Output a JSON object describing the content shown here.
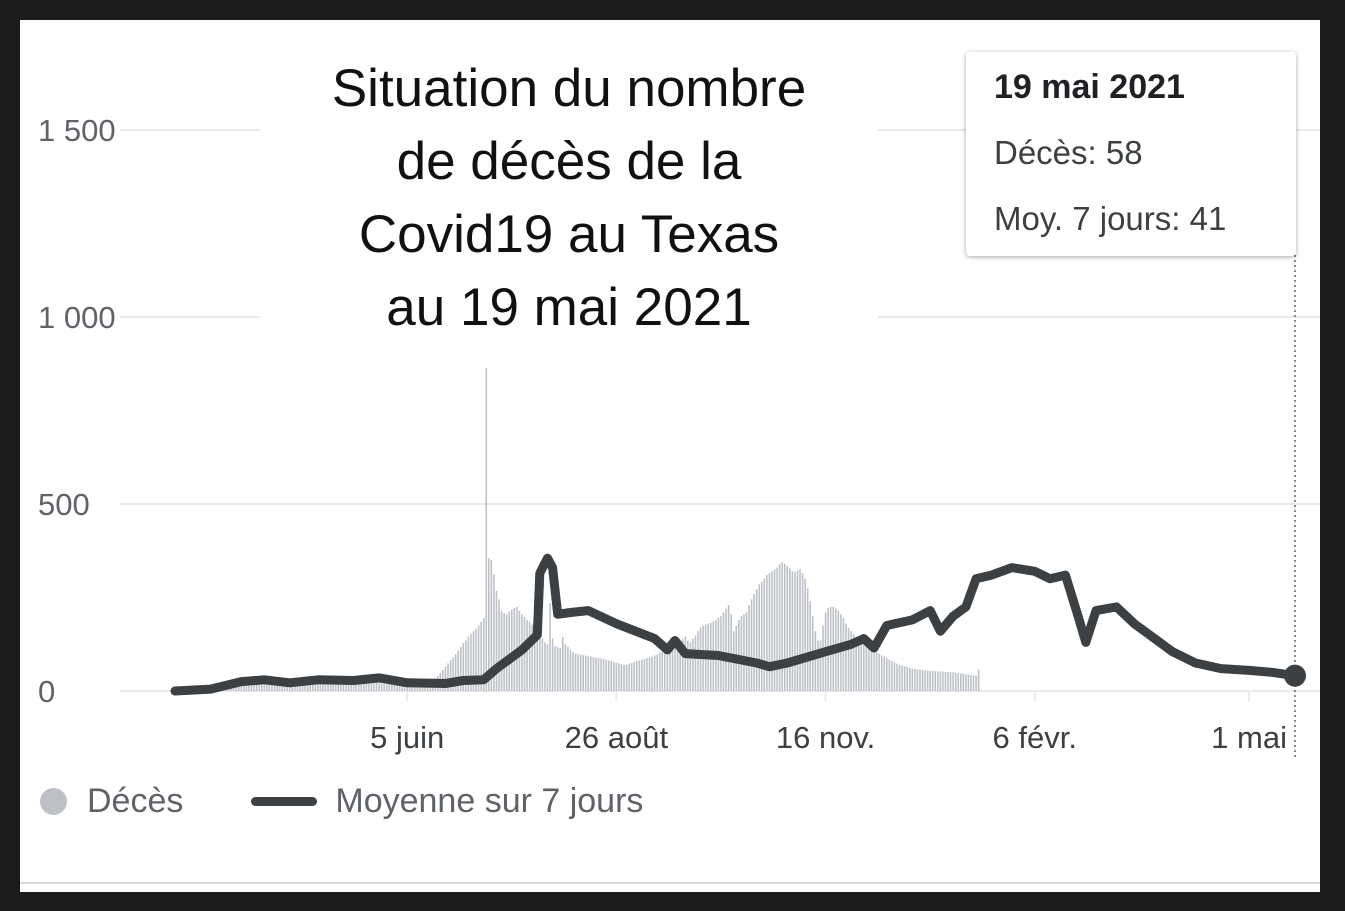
{
  "title": "Situation du nombre\nde décès de la\nCovid19 au Texas\nau 19 mai 2021",
  "tooltip": {
    "date": "19 mai 2021",
    "deaths": "Décès: 58",
    "avg": "Moy. 7 jours: 41"
  },
  "legend": {
    "deaths": "Décès",
    "avg": "Moyenne sur 7 jours"
  },
  "colors": {
    "bars": "#bdc1c6",
    "line": "#3c4043",
    "grid": "#e8eaed"
  },
  "chart_data": {
    "type": "bar",
    "title": "",
    "x_range": [
      "2020-03-06",
      "2021-05-19"
    ],
    "ylim": [
      0,
      1500
    ],
    "y_ticks": [
      0,
      500,
      1000,
      1500
    ],
    "y_tick_labels": [
      "0",
      "500",
      "1 000",
      "1 500"
    ],
    "x_ticks": [
      {
        "date": "2020-06-05",
        "label": "5 juin"
      },
      {
        "date": "2020-08-26",
        "label": "26 août"
      },
      {
        "date": "2020-11-16",
        "label": "16 nov."
      },
      {
        "date": "2021-02-06",
        "label": "6 févr."
      },
      {
        "date": "2021-05-01",
        "label": "1 mai"
      }
    ],
    "grid": true,
    "legend_position": "bottom-left",
    "series": [
      {
        "name": "Décès",
        "type": "bar",
        "daily_values_from": "2020-03-06",
        "values": [
          0,
          0,
          0,
          0,
          0,
          0,
          0,
          0,
          0,
          0,
          0,
          1,
          1,
          2,
          2,
          2,
          3,
          4,
          5,
          6,
          7,
          9,
          11,
          13,
          15,
          17,
          19,
          21,
          23,
          25,
          24,
          26,
          27,
          28,
          27,
          30,
          29,
          28,
          27,
          26,
          28,
          27,
          25,
          24,
          22,
          21,
          22,
          23,
          25,
          26,
          27,
          26,
          25,
          24,
          27,
          28,
          29,
          30,
          28,
          27,
          26,
          25,
          26,
          28,
          30,
          31,
          32,
          30,
          29,
          28,
          26,
          25,
          24,
          22,
          22,
          21,
          20,
          21,
          22,
          23,
          22,
          21,
          20,
          19,
          18,
          19,
          20,
          21,
          22,
          23,
          22,
          21,
          20,
          21,
          22,
          24,
          25,
          26,
          27,
          28,
          30,
          32,
          35,
          40,
          48,
          56,
          65,
          74,
          82,
          90,
          98,
          108,
          118,
          128,
          135,
          145,
          152,
          160,
          166,
          175,
          185,
          195,
          870,
          355,
          350,
          312,
          268,
          245,
          215,
          208,
          205,
          212,
          218,
          222,
          225,
          215,
          205,
          198,
          190,
          185,
          178,
          172,
          160,
          150,
          140,
          130,
          125,
          235,
          140,
          120,
          118,
          115,
          145,
          125,
          118,
          110,
          104,
          100,
          98,
          97,
          96,
          95,
          93,
          92,
          90,
          89,
          88,
          87,
          86,
          84,
          82,
          80,
          78,
          76,
          74,
          72,
          70,
          70,
          73,
          75,
          78,
          80,
          82,
          84,
          86,
          88,
          90,
          92,
          95,
          98,
          102,
          106,
          110,
          114,
          118,
          122,
          126,
          130,
          134,
          138,
          145,
          135,
          130,
          140,
          148,
          160,
          170,
          175,
          178,
          180,
          182,
          186,
          190,
          196,
          200,
          210,
          220,
          230,
          205,
          160,
          175,
          190,
          200,
          205,
          210,
          230,
          245,
          260,
          272,
          285,
          292,
          300,
          310,
          315,
          320,
          325,
          330,
          340,
          345,
          340,
          335,
          328,
          320,
          318,
          322,
          325,
          315,
          300,
          275,
          240,
          200,
          160,
          135,
          135,
          175,
          210,
          222,
          225,
          225,
          220,
          215,
          205,
          195,
          180,
          168,
          160,
          152,
          145,
          140,
          135,
          130,
          125,
          120,
          115,
          110,
          105,
          100,
          95,
          92,
          88,
          84,
          80,
          76,
          73,
          70,
          68,
          66,
          64,
          62,
          60,
          59,
          58,
          57,
          56,
          55,
          55,
          54,
          54,
          53,
          53,
          52,
          52,
          51,
          51,
          50,
          50,
          49,
          48,
          47,
          46,
          45,
          44,
          43,
          42,
          41,
          58
        ]
      },
      {
        "name": "Moyenne sur 7 jours",
        "type": "line",
        "points": [
          [
            "2020-03-06",
            0
          ],
          [
            "2020-03-20",
            5
          ],
          [
            "2020-04-01",
            25
          ],
          [
            "2020-04-10",
            30
          ],
          [
            "2020-04-20",
            22
          ],
          [
            "2020-05-01",
            30
          ],
          [
            "2020-05-15",
            28
          ],
          [
            "2020-05-25",
            35
          ],
          [
            "2020-06-05",
            22
          ],
          [
            "2020-06-20",
            20
          ],
          [
            "2020-06-27",
            28
          ],
          [
            "2020-07-05",
            30
          ],
          [
            "2020-07-10",
            60
          ],
          [
            "2020-07-20",
            110
          ],
          [
            "2020-07-26",
            150
          ],
          [
            "2020-07-27",
            315
          ],
          [
            "2020-07-30",
            355
          ],
          [
            "2020-08-01",
            330
          ],
          [
            "2020-08-03",
            205
          ],
          [
            "2020-08-08",
            210
          ],
          [
            "2020-08-15",
            215
          ],
          [
            "2020-08-26",
            180
          ],
          [
            "2020-09-10",
            140
          ],
          [
            "2020-09-15",
            110
          ],
          [
            "2020-09-18",
            135
          ],
          [
            "2020-09-22",
            100
          ],
          [
            "2020-10-05",
            95
          ],
          [
            "2020-10-20",
            75
          ],
          [
            "2020-10-25",
            65
          ],
          [
            "2020-11-01",
            75
          ],
          [
            "2020-11-16",
            105
          ],
          [
            "2020-11-26",
            125
          ],
          [
            "2020-12-01",
            140
          ],
          [
            "2020-12-05",
            115
          ],
          [
            "2020-12-10",
            175
          ],
          [
            "2020-12-20",
            190
          ],
          [
            "2020-12-27",
            215
          ],
          [
            "2020-12-31",
            160
          ],
          [
            "2021-01-05",
            200
          ],
          [
            "2021-01-10",
            225
          ],
          [
            "2021-01-14",
            300
          ],
          [
            "2021-01-20",
            310
          ],
          [
            "2021-01-28",
            330
          ],
          [
            "2021-02-06",
            320
          ],
          [
            "2021-02-12",
            300
          ],
          [
            "2021-02-18",
            310
          ],
          [
            "2021-02-23",
            200
          ],
          [
            "2021-02-26",
            130
          ],
          [
            "2021-03-02",
            215
          ],
          [
            "2021-03-10",
            225
          ],
          [
            "2021-03-17",
            180
          ],
          [
            "2021-03-25",
            140
          ],
          [
            "2021-04-01",
            105
          ],
          [
            "2021-04-10",
            75
          ],
          [
            "2021-04-20",
            60
          ],
          [
            "2021-05-01",
            55
          ],
          [
            "2021-05-10",
            50
          ],
          [
            "2021-05-19",
            41
          ]
        ]
      }
    ],
    "highlight": {
      "date": "2021-05-19",
      "series": "Moyenne sur 7 jours",
      "value": 41
    }
  }
}
